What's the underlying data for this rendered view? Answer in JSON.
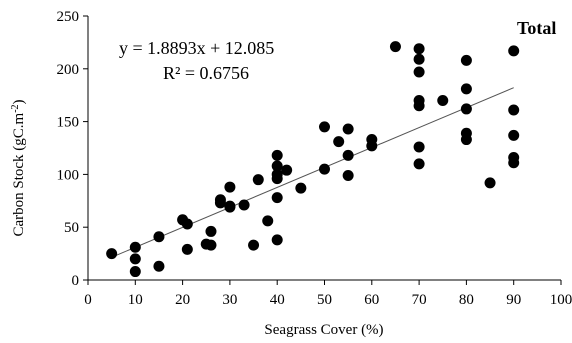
{
  "chart_data": {
    "type": "scatter",
    "panel_label": "Total",
    "xlabel": "Seagrass Cover (%)",
    "ylabel": "Carbon Stock (gC.m",
    "ylabel_sup": "-2",
    "ylabel_tail": ")",
    "xlim": [
      0,
      100
    ],
    "ylim": [
      0,
      250
    ],
    "x_ticks": [
      "0",
      "10",
      "20",
      "30",
      "40",
      "50",
      "60",
      "70",
      "80",
      "90",
      "100"
    ],
    "y_ticks": [
      "0",
      "50",
      "100",
      "150",
      "200",
      "250"
    ],
    "grid": false,
    "equation": "y = 1.8893x + 12.085",
    "r_squared": "R² = 0.6756",
    "trendline": {
      "slope": 1.8893,
      "intercept": 12.085,
      "x_range": [
        5,
        90
      ]
    },
    "points": [
      {
        "x": 5,
        "y": 25
      },
      {
        "x": 10,
        "y": 31
      },
      {
        "x": 10,
        "y": 20
      },
      {
        "x": 10,
        "y": 8
      },
      {
        "x": 15,
        "y": 41
      },
      {
        "x": 15,
        "y": 13
      },
      {
        "x": 20,
        "y": 57
      },
      {
        "x": 21,
        "y": 53
      },
      {
        "x": 21,
        "y": 29
      },
      {
        "x": 25,
        "y": 34
      },
      {
        "x": 26,
        "y": 33
      },
      {
        "x": 26,
        "y": 46
      },
      {
        "x": 28,
        "y": 73
      },
      {
        "x": 28,
        "y": 76
      },
      {
        "x": 30,
        "y": 88
      },
      {
        "x": 30,
        "y": 70
      },
      {
        "x": 30,
        "y": 69
      },
      {
        "x": 33,
        "y": 71
      },
      {
        "x": 35,
        "y": 33
      },
      {
        "x": 36,
        "y": 95
      },
      {
        "x": 38,
        "y": 56
      },
      {
        "x": 40,
        "y": 118
      },
      {
        "x": 40,
        "y": 108
      },
      {
        "x": 40,
        "y": 100
      },
      {
        "x": 40,
        "y": 96
      },
      {
        "x": 40,
        "y": 78
      },
      {
        "x": 40,
        "y": 38
      },
      {
        "x": 42,
        "y": 104
      },
      {
        "x": 45,
        "y": 87
      },
      {
        "x": 50,
        "y": 145
      },
      {
        "x": 50,
        "y": 105
      },
      {
        "x": 53,
        "y": 131
      },
      {
        "x": 55,
        "y": 143
      },
      {
        "x": 55,
        "y": 118
      },
      {
        "x": 55,
        "y": 99
      },
      {
        "x": 60,
        "y": 133
      },
      {
        "x": 60,
        "y": 127
      },
      {
        "x": 65,
        "y": 221
      },
      {
        "x": 70,
        "y": 219
      },
      {
        "x": 70,
        "y": 209
      },
      {
        "x": 70,
        "y": 197
      },
      {
        "x": 70,
        "y": 170
      },
      {
        "x": 70,
        "y": 165
      },
      {
        "x": 70,
        "y": 126
      },
      {
        "x": 70,
        "y": 110
      },
      {
        "x": 75,
        "y": 170
      },
      {
        "x": 80,
        "y": 208
      },
      {
        "x": 80,
        "y": 181
      },
      {
        "x": 80,
        "y": 162
      },
      {
        "x": 80,
        "y": 139
      },
      {
        "x": 80,
        "y": 133
      },
      {
        "x": 85,
        "y": 92
      },
      {
        "x": 90,
        "y": 217
      },
      {
        "x": 90,
        "y": 161
      },
      {
        "x": 90,
        "y": 137
      },
      {
        "x": 90,
        "y": 116
      },
      {
        "x": 90,
        "y": 111
      }
    ]
  }
}
